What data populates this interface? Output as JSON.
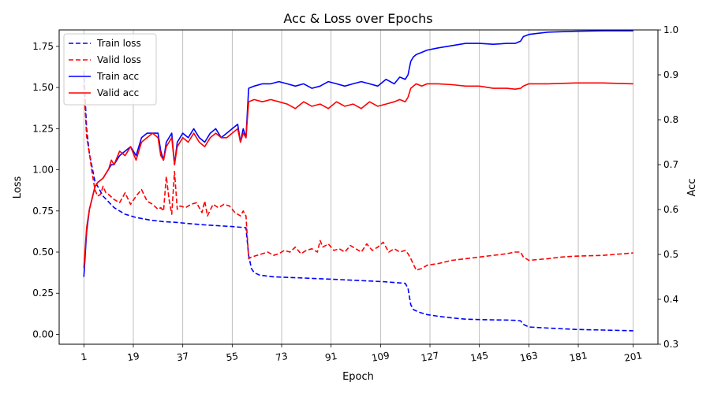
{
  "chart_data": {
    "type": "line",
    "title": "Acc & Loss over Epochs",
    "xlabel": "Epoch",
    "ylabel_left": "Loss",
    "ylabel_right": "Acc",
    "xlim": [
      -8,
      210
    ],
    "ylim_left": [
      -0.06,
      1.85
    ],
    "ylim_right": [
      0.3,
      1.0
    ],
    "xticks": [
      1,
      19,
      37,
      55,
      73,
      91,
      109,
      127,
      145,
      163,
      181,
      201
    ],
    "yticks_left": [
      0.0,
      0.25,
      0.5,
      0.75,
      1.0,
      1.25,
      1.5,
      1.75
    ],
    "yticks_right": [
      0.3,
      0.4,
      0.5,
      0.6,
      0.7,
      0.8,
      0.9,
      1.0
    ],
    "xtick_labels": [
      "1",
      "19",
      "37",
      "55",
      "73",
      "91",
      "109",
      "127",
      "145",
      "163",
      "181",
      "201"
    ],
    "yticks_left_labels": [
      "0.00",
      "0.25",
      "0.50",
      "0.75",
      "1.00",
      "1.25",
      "1.50",
      "1.75"
    ],
    "yticks_right_labels": [
      "0.3",
      "0.4",
      "0.5",
      "0.6",
      "0.7",
      "0.8",
      "0.9",
      "1.0"
    ],
    "grid": "x",
    "legend_position": "top-left",
    "series": [
      {
        "name": "Train loss",
        "axis": "left",
        "color": "#0000ff",
        "dash": "dashed",
        "x": [
          1,
          2,
          3,
          5,
          8,
          12,
          16,
          20,
          25,
          30,
          35,
          40,
          45,
          50,
          55,
          60,
          61,
          62,
          63,
          65,
          70,
          80,
          90,
          100,
          110,
          118,
          119,
          120,
          121,
          123,
          126,
          130,
          135,
          140,
          145,
          150,
          155,
          158,
          160,
          161,
          163,
          170,
          180,
          190,
          201
        ],
        "y": [
          1.6,
          1.25,
          1.1,
          0.93,
          0.84,
          0.77,
          0.73,
          0.71,
          0.695,
          0.685,
          0.68,
          0.672,
          0.665,
          0.66,
          0.655,
          0.648,
          0.48,
          0.4,
          0.375,
          0.36,
          0.35,
          0.343,
          0.336,
          0.328,
          0.32,
          0.31,
          0.28,
          0.18,
          0.15,
          0.135,
          0.12,
          0.11,
          0.1,
          0.092,
          0.09,
          0.088,
          0.087,
          0.085,
          0.082,
          0.06,
          0.045,
          0.038,
          0.03,
          0.026,
          0.022
        ]
      },
      {
        "name": "Valid loss",
        "axis": "left",
        "color": "#ff0000",
        "dash": "dashed",
        "x": [
          1,
          2,
          3,
          4,
          5,
          6,
          7,
          8,
          9,
          10,
          12,
          14,
          16,
          18,
          20,
          22,
          24,
          26,
          28,
          29,
          30,
          31,
          32,
          33,
          34,
          35,
          36,
          38,
          40,
          42,
          44,
          45,
          46,
          48,
          50,
          52,
          54,
          56,
          58,
          59,
          60,
          61,
          62,
          64,
          66,
          68,
          70,
          72,
          74,
          76,
          78,
          80,
          82,
          84,
          86,
          87,
          88,
          90,
          92,
          94,
          96,
          98,
          100,
          102,
          104,
          106,
          108,
          110,
          112,
          114,
          116,
          118,
          119,
          120,
          122,
          124,
          126,
          130,
          135,
          140,
          145,
          150,
          155,
          158,
          160,
          161,
          163,
          170,
          175,
          180,
          190,
          201
        ],
        "y": [
          1.52,
          1.2,
          1.1,
          0.98,
          0.88,
          0.84,
          0.85,
          0.9,
          0.86,
          0.85,
          0.82,
          0.8,
          0.86,
          0.79,
          0.84,
          0.88,
          0.81,
          0.79,
          0.76,
          0.77,
          0.75,
          0.96,
          0.82,
          0.73,
          0.99,
          0.76,
          0.78,
          0.77,
          0.79,
          0.8,
          0.74,
          0.81,
          0.72,
          0.79,
          0.77,
          0.79,
          0.78,
          0.74,
          0.72,
          0.75,
          0.72,
          0.46,
          0.47,
          0.48,
          0.49,
          0.5,
          0.48,
          0.49,
          0.51,
          0.5,
          0.53,
          0.49,
          0.51,
          0.52,
          0.5,
          0.57,
          0.53,
          0.55,
          0.51,
          0.52,
          0.5,
          0.54,
          0.52,
          0.5,
          0.55,
          0.51,
          0.53,
          0.56,
          0.5,
          0.52,
          0.5,
          0.51,
          0.49,
          0.46,
          0.39,
          0.4,
          0.42,
          0.43,
          0.45,
          0.46,
          0.47,
          0.48,
          0.49,
          0.5,
          0.5,
          0.47,
          0.45,
          0.46,
          0.47,
          0.475,
          0.48,
          0.495
        ]
      },
      {
        "name": "Train acc",
        "axis": "right",
        "color": "#0000ff",
        "dash": "solid",
        "x": [
          1,
          2,
          3,
          5,
          6,
          8,
          10,
          11,
          12,
          14,
          16,
          18,
          20,
          22,
          24,
          26,
          28,
          29,
          30,
          31,
          33,
          34,
          35,
          37,
          39,
          41,
          43,
          45,
          47,
          49,
          51,
          53,
          55,
          57,
          58,
          59,
          60,
          61,
          63,
          66,
          69,
          72,
          75,
          78,
          81,
          84,
          87,
          90,
          93,
          96,
          99,
          102,
          105,
          108,
          111,
          114,
          116,
          118,
          119,
          120,
          121,
          122,
          124,
          126,
          130,
          135,
          140,
          145,
          150,
          155,
          158,
          160,
          161,
          163,
          170,
          180,
          190,
          201
        ],
        "y": [
          0.45,
          0.55,
          0.6,
          0.65,
          0.66,
          0.67,
          0.69,
          0.7,
          0.7,
          0.72,
          0.73,
          0.74,
          0.72,
          0.76,
          0.77,
          0.77,
          0.77,
          0.73,
          0.71,
          0.75,
          0.77,
          0.7,
          0.75,
          0.77,
          0.76,
          0.78,
          0.76,
          0.75,
          0.77,
          0.78,
          0.76,
          0.77,
          0.78,
          0.79,
          0.75,
          0.78,
          0.76,
          0.87,
          0.875,
          0.88,
          0.88,
          0.885,
          0.88,
          0.875,
          0.88,
          0.87,
          0.875,
          0.885,
          0.88,
          0.875,
          0.88,
          0.885,
          0.88,
          0.875,
          0.89,
          0.88,
          0.895,
          0.89,
          0.9,
          0.93,
          0.94,
          0.945,
          0.95,
          0.955,
          0.96,
          0.965,
          0.97,
          0.97,
          0.968,
          0.97,
          0.97,
          0.975,
          0.985,
          0.99,
          0.995,
          0.997,
          0.998,
          0.998
        ]
      },
      {
        "name": "Valid acc",
        "axis": "right",
        "color": "#ff0000",
        "dash": "solid",
        "x": [
          1,
          2,
          3,
          5,
          6,
          8,
          10,
          11,
          12,
          14,
          16,
          18,
          20,
          22,
          24,
          26,
          28,
          29,
          30,
          31,
          33,
          34,
          35,
          37,
          39,
          41,
          43,
          45,
          47,
          49,
          51,
          53,
          55,
          57,
          58,
          59,
          60,
          61,
          63,
          66,
          69,
          72,
          75,
          78,
          81,
          84,
          87,
          90,
          93,
          96,
          99,
          102,
          105,
          108,
          111,
          114,
          116,
          118,
          119,
          120,
          121,
          122,
          124,
          126,
          130,
          135,
          140,
          145,
          150,
          155,
          158,
          160,
          161,
          163,
          170,
          180,
          190,
          201
        ],
        "y": [
          0.47,
          0.56,
          0.6,
          0.65,
          0.66,
          0.67,
          0.69,
          0.71,
          0.7,
          0.73,
          0.72,
          0.74,
          0.71,
          0.75,
          0.76,
          0.77,
          0.76,
          0.72,
          0.71,
          0.74,
          0.76,
          0.7,
          0.74,
          0.76,
          0.75,
          0.77,
          0.75,
          0.74,
          0.76,
          0.77,
          0.76,
          0.76,
          0.77,
          0.78,
          0.75,
          0.77,
          0.76,
          0.84,
          0.845,
          0.84,
          0.845,
          0.84,
          0.835,
          0.825,
          0.84,
          0.83,
          0.835,
          0.825,
          0.84,
          0.83,
          0.835,
          0.825,
          0.84,
          0.83,
          0.835,
          0.84,
          0.845,
          0.84,
          0.85,
          0.87,
          0.875,
          0.88,
          0.875,
          0.88,
          0.88,
          0.878,
          0.875,
          0.875,
          0.87,
          0.87,
          0.868,
          0.87,
          0.875,
          0.88,
          0.88,
          0.882,
          0.882,
          0.88
        ]
      }
    ]
  }
}
